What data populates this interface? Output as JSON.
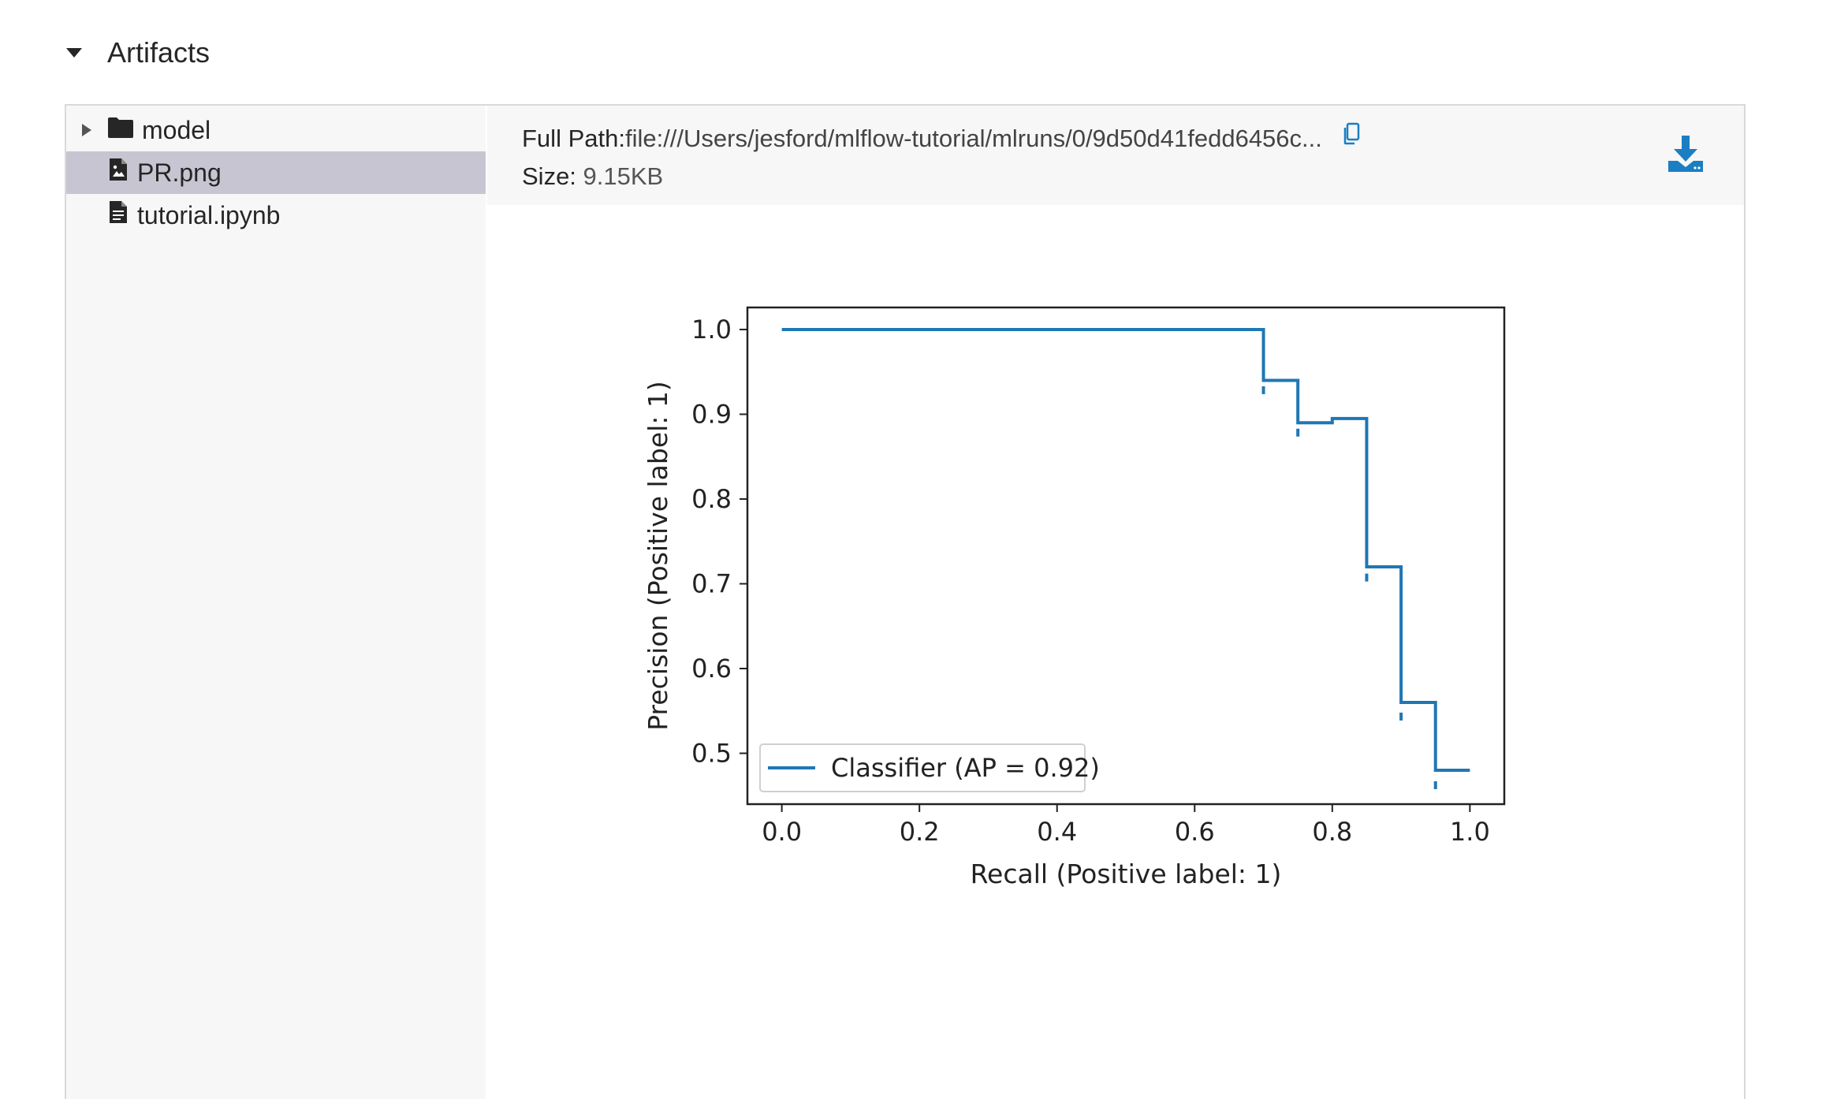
{
  "section": {
    "title": "Artifacts"
  },
  "tree": {
    "items": [
      {
        "label": "model",
        "type": "folder"
      },
      {
        "label": "PR.png",
        "type": "image"
      },
      {
        "label": "tutorial.ipynb",
        "type": "file"
      }
    ]
  },
  "details": {
    "path_label": "Full Path:",
    "path_value": "file:///Users/jesford/mlflow-tutorial/mlruns/0/9d50d41fedd6456c...",
    "size_label": "Size:",
    "size_value": "9.15KB",
    "copy_icon": "copy-icon",
    "download_icon": "download-icon"
  },
  "colors": {
    "accent": "#1b7ec2",
    "series": "#1f77b4",
    "selected": "#c8c5d2"
  },
  "chart_data": {
    "type": "line",
    "xlabel": "Recall (Positive label: 1)",
    "ylabel": "Precision (Positive label: 1)",
    "xlim": [
      -0.05,
      1.05
    ],
    "ylim": [
      0.44,
      1.026
    ],
    "xticks": [
      "0.0",
      "0.2",
      "0.4",
      "0.6",
      "0.8",
      "1.0"
    ],
    "yticks": [
      "0.5",
      "0.6",
      "0.7",
      "0.8",
      "0.9",
      "1.0"
    ],
    "legend": {
      "position": "lower-left",
      "label": "Classifier (AP = 0.92)"
    },
    "series": [
      {
        "name": "Classifier (AP = 0.92)",
        "x": [
          0.0,
          0.7,
          0.7,
          0.75,
          0.75,
          0.8,
          0.8,
          0.85,
          0.85,
          0.9,
          0.9,
          0.95,
          0.95,
          1.0
        ],
        "y": [
          1.0,
          1.0,
          0.94,
          0.94,
          0.89,
          0.89,
          0.895,
          0.895,
          0.72,
          0.72,
          0.56,
          0.56,
          0.48,
          0.48
        ]
      }
    ],
    "step_markers": [
      {
        "x": 0.7,
        "y": 0.933
      },
      {
        "x": 0.75,
        "y": 0.883
      },
      {
        "x": 0.85,
        "y": 0.712
      },
      {
        "x": 0.9,
        "y": 0.548
      },
      {
        "x": 0.95,
        "y": 0.467
      }
    ]
  }
}
